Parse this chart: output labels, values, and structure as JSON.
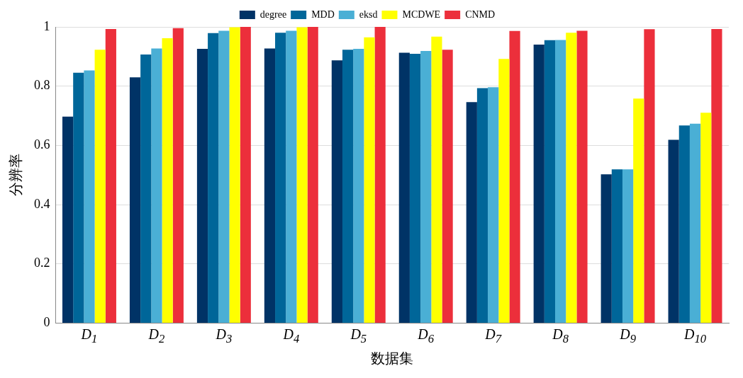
{
  "chart_data": {
    "type": "bar",
    "xlabel": "数据集",
    "ylabel": "分辨率",
    "categories": [
      "D$_{1}$",
      "D$_{2}$",
      "D$_{3}$",
      "D$_{4}$",
      "D$_{5}$",
      "D$_{6}$",
      "D$_{7}$",
      "D$_{8}$",
      "D$_{9}$",
      "D$_{10}$"
    ],
    "series": [
      {
        "name": "degree",
        "color": "#003366",
        "values": [
          0.697,
          0.83,
          0.926,
          0.927,
          0.887,
          0.913,
          0.746,
          0.94,
          0.502,
          0.619
        ]
      },
      {
        "name": "MDD",
        "color": "#006699",
        "values": [
          0.845,
          0.907,
          0.979,
          0.98,
          0.923,
          0.909,
          0.793,
          0.955,
          0.519,
          0.667
        ]
      },
      {
        "name": "eksd",
        "color": "#4aafd5",
        "values": [
          0.853,
          0.927,
          0.987,
          0.987,
          0.926,
          0.919,
          0.796,
          0.956,
          0.519,
          0.673
        ]
      },
      {
        "name": "MCDWE",
        "color": "#ffff00",
        "values": [
          0.923,
          0.962,
          0.999,
          0.999,
          0.965,
          0.967,
          0.892,
          0.98,
          0.758,
          0.71
        ]
      },
      {
        "name": "CNMD",
        "color": "#ec2f3b",
        "values": [
          0.993,
          0.996,
          1.0,
          1.0,
          1.0,
          0.923,
          0.986,
          0.987,
          0.992,
          0.993
        ]
      }
    ],
    "ylim": [
      0,
      1
    ],
    "yticks": [
      0,
      0.2,
      0.4,
      0.6,
      0.8,
      1
    ],
    "grid": "y",
    "legend": "top"
  }
}
